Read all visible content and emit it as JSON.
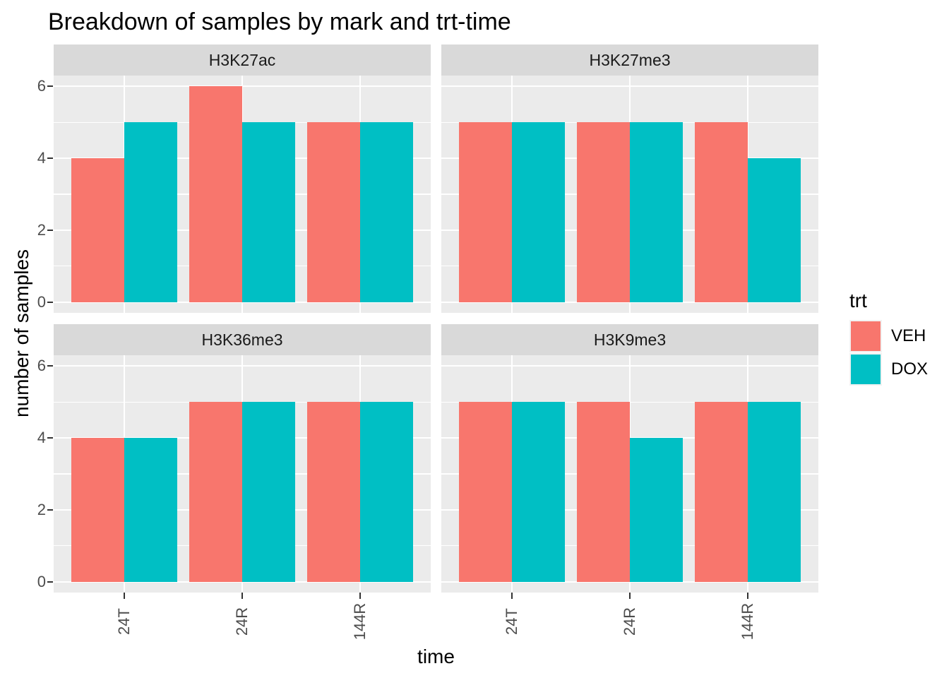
{
  "chart_data": {
    "type": "bar",
    "bar_layout": "dodged",
    "title": "Breakdown of samples by mark and trt-time",
    "xlabel": "time",
    "ylabel": "number of samples",
    "categories": [
      "24T",
      "24R",
      "144R"
    ],
    "y_ticks": [
      0,
      2,
      4,
      6
    ],
    "y_minor_ticks": [
      1,
      3,
      5
    ],
    "ylim": [
      0,
      6.6
    ],
    "grid": "white major+minor on grey panel",
    "legend": {
      "title": "trt",
      "position": "right"
    },
    "series": [
      {
        "name": "VEH",
        "color": "#F8766D"
      },
      {
        "name": "DOX",
        "color": "#00BFC4"
      }
    ],
    "facets": [
      {
        "label": "H3K27ac",
        "values": {
          "VEH": [
            4,
            6,
            5
          ],
          "DOX": [
            5,
            5,
            5
          ]
        }
      },
      {
        "label": "H3K27me3",
        "values": {
          "VEH": [
            5,
            5,
            5
          ],
          "DOX": [
            5,
            5,
            4
          ]
        }
      },
      {
        "label": "H3K36me3",
        "values": {
          "VEH": [
            4,
            5,
            5
          ],
          "DOX": [
            4,
            5,
            5
          ]
        }
      },
      {
        "label": "H3K9me3",
        "values": {
          "VEH": [
            5,
            5,
            5
          ],
          "DOX": [
            5,
            4,
            5
          ]
        }
      }
    ],
    "theme_colors": {
      "background": "#FFFFFF",
      "panel_background": "#EBEBEB",
      "strip_background": "#D9D9D9",
      "gridline": "#FFFFFF",
      "axis_text": "#4D4D4D",
      "tick_mark": "#333333",
      "strip_text": "#1A1A1A",
      "title_text": "#000000"
    }
  }
}
